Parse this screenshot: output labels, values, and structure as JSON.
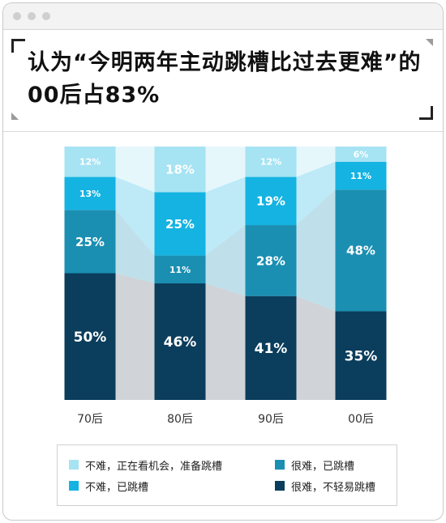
{
  "title": "认为“今明两年主动跳槽比过去更难”的00后占83%",
  "chart_data": {
    "type": "bar",
    "stacked": true,
    "percent": true,
    "categories": [
      "70后",
      "80后",
      "90后",
      "00后"
    ],
    "series": [
      {
        "name": "很难，不轻易跳槽",
        "color": "#0b3d5c",
        "values": [
          50,
          46,
          41,
          35
        ]
      },
      {
        "name": "很难，已跳槽",
        "color": "#1a8fb2",
        "values": [
          25,
          11,
          28,
          48
        ]
      },
      {
        "name": "不难，已跳槽",
        "color": "#14b3e2",
        "values": [
          13,
          25,
          19,
          11
        ]
      },
      {
        "name": "不难，正在看机会，准备跳槽",
        "color": "#a6e3f3",
        "values": [
          12,
          18,
          12,
          6
        ]
      }
    ],
    "ylim": [
      0,
      100
    ],
    "legend_position": "bottom"
  },
  "legend": {
    "items": [
      {
        "label": "不难，正在看机会，准备跳槽",
        "color": "#a6e3f3"
      },
      {
        "label": "很难，已跳槽",
        "color": "#1a8fb2"
      },
      {
        "label": "不难，已跳槽",
        "color": "#14b3e2"
      },
      {
        "label": "很难，不轻易跳槽",
        "color": "#0b3d5c"
      }
    ]
  }
}
